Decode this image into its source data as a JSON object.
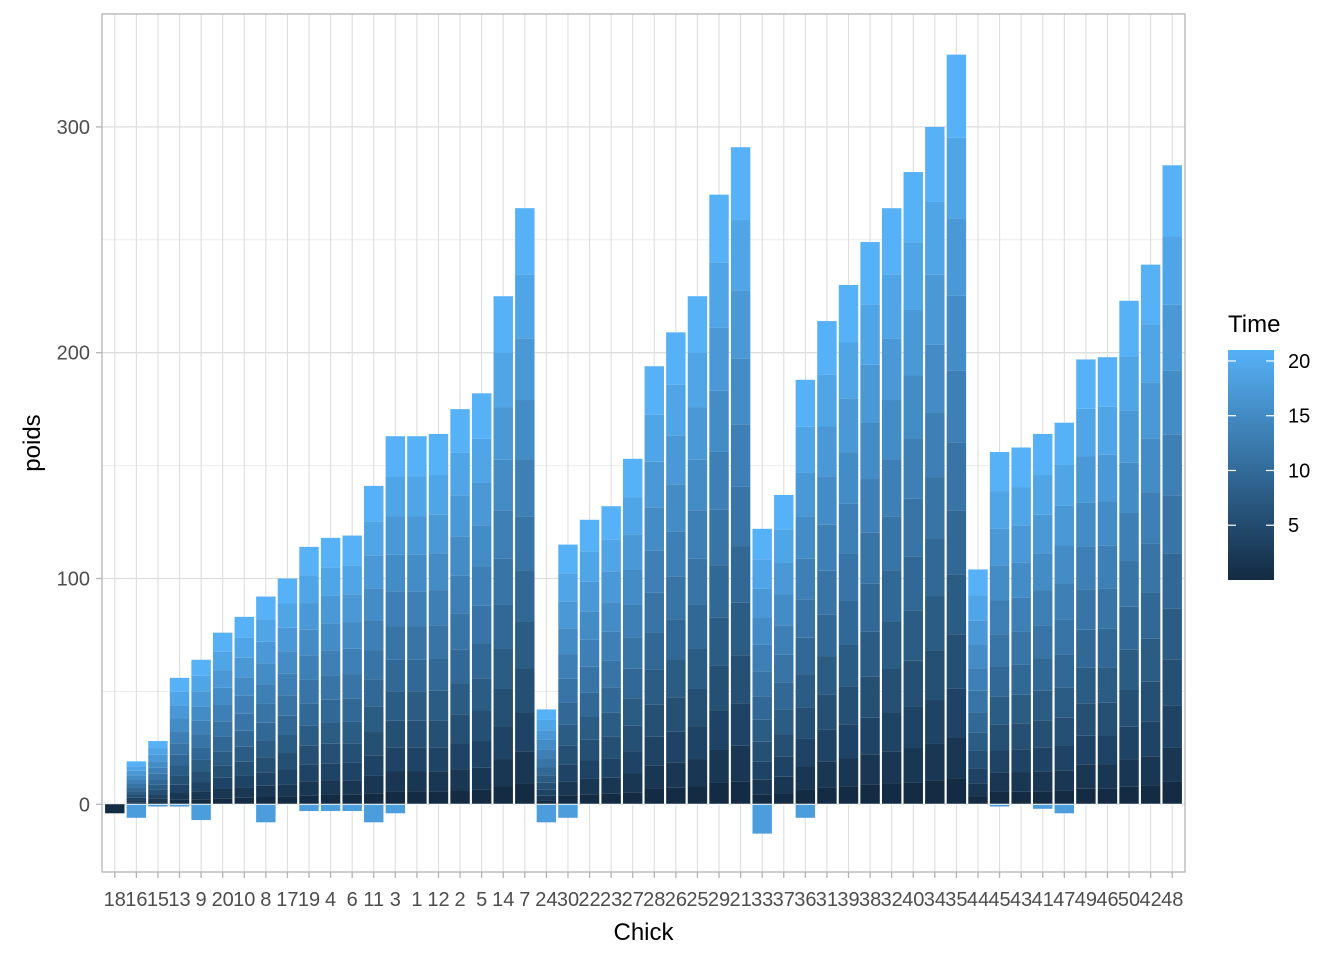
{
  "chart_data": {
    "type": "bar",
    "stacked": true,
    "xlabel": "Chick",
    "ylabel": "poids",
    "ylim": [
      -30,
      350
    ],
    "yticks": [
      0,
      100,
      200,
      300
    ],
    "grid": true,
    "legend": {
      "title": "Time",
      "placement": "right",
      "type": "colorbar",
      "range": [
        0,
        21
      ],
      "ticks": [
        5,
        10,
        15,
        20
      ],
      "color_low": "#132B43",
      "color_high": "#56B1F7"
    },
    "categories": [
      "18",
      "16",
      "15",
      "13",
      "9",
      "20",
      "10",
      "8",
      "17",
      "19",
      "4",
      "6",
      "11",
      "3",
      "1",
      "12",
      "2",
      "5",
      "14",
      "7",
      "24",
      "30",
      "22",
      "23",
      "27",
      "28",
      "26",
      "25",
      "29",
      "21",
      "33",
      "37",
      "36",
      "31",
      "39",
      "38",
      "32",
      "40",
      "34",
      "35",
      "44",
      "45",
      "43",
      "41",
      "47",
      "49",
      "46",
      "50",
      "42",
      "48"
    ],
    "totals": [
      -4,
      19,
      28,
      56,
      64,
      76,
      83,
      92,
      100,
      114,
      118,
      119,
      141,
      163,
      163,
      164,
      175,
      182,
      225,
      264,
      42,
      115,
      126,
      132,
      153,
      194,
      209,
      225,
      270,
      291,
      122,
      137,
      188,
      214,
      230,
      249,
      264,
      280,
      300,
      332,
      104,
      156,
      158,
      164,
      169,
      197,
      198,
      223,
      239,
      283
    ],
    "negative_extents": [
      -4,
      -6,
      -1,
      -1,
      -7,
      0,
      0,
      -8,
      0,
      -3,
      -3,
      -3,
      -8,
      -4,
      0,
      0,
      0,
      0,
      0,
      0,
      -8,
      -6,
      0,
      0,
      0,
      0,
      0,
      0,
      0,
      0,
      -13,
      0,
      -6,
      0,
      0,
      0,
      0,
      0,
      0,
      0,
      0,
      -1,
      0,
      -2,
      -4,
      0,
      0,
      0,
      0,
      0
    ]
  }
}
